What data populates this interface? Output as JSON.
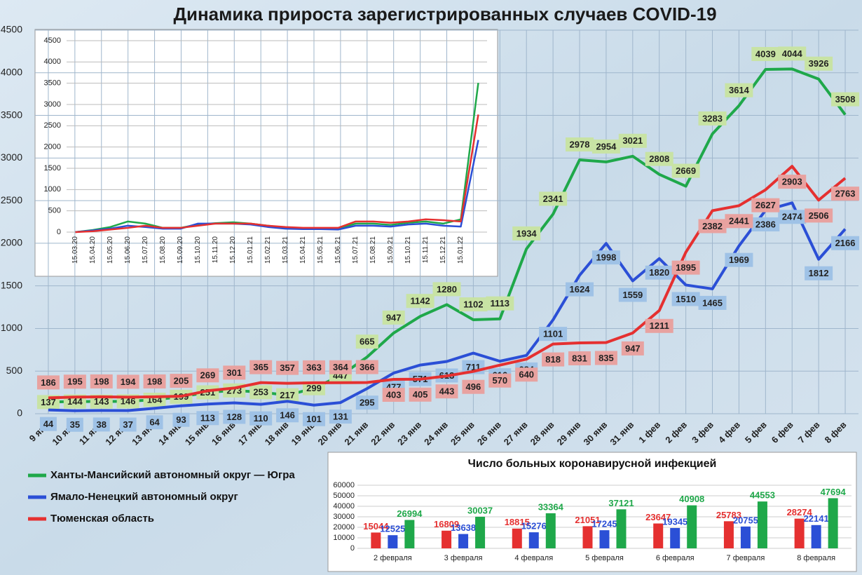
{
  "chart_data": [
    {
      "type": "line",
      "title": "Динамика прироста зарегистрированных случаев COVID-19",
      "categories": [
        "9 янв",
        "10 янв",
        "11 янв",
        "12 янв",
        "13 янв",
        "14 янв",
        "15 янв",
        "16 янв",
        "17 янв",
        "18 янв",
        "19 янв",
        "20 янв",
        "21 янв",
        "22 янв",
        "23 янв",
        "24 янв",
        "25 янв",
        "26 янв",
        "27 янв",
        "28 янв",
        "29 янв",
        "30 янв",
        "31 янв",
        "1 фев",
        "2 фев",
        "3 фев",
        "4 фев",
        "5 фев",
        "6 фев",
        "7 фев",
        "8 фев"
      ],
      "series": [
        {
          "name": "Ханты-Мансийский автономный округ — Югра",
          "color": "#1fa84a",
          "label_color": "#c8e3a4",
          "values": [
            137,
            144,
            143,
            146,
            164,
            199,
            251,
            273,
            253,
            217,
            299,
            447,
            665,
            947,
            1142,
            1280,
            1102,
            1113,
            1934,
            2341,
            2978,
            2954,
            3021,
            2808,
            2669,
            3283,
            3614,
            4039,
            4044,
            3926,
            3508
          ]
        },
        {
          "name": "Ямало-Ненецкий автономный округ",
          "color": "#2b4fd6",
          "label_color": "#9fc2e6",
          "values": [
            44,
            35,
            38,
            37,
            64,
            93,
            113,
            128,
            110,
            146,
            101,
            131,
            295,
            477,
            571,
            613,
            711,
            616,
            684,
            1101,
            1624,
            1998,
            1559,
            1820,
            1510,
            1465,
            1969,
            2386,
            2474,
            1812,
            2166
          ]
        },
        {
          "name": "Тюменская область",
          "color": "#e53030",
          "label_color": "#e8a2a0",
          "values": [
            186,
            195,
            198,
            194,
            198,
            205,
            269,
            301,
            365,
            357,
            363,
            364,
            366,
            403,
            405,
            443,
            496,
            570,
            640,
            818,
            831,
            835,
            947,
            1211,
            1895,
            2382,
            2441,
            2627,
            2903,
            2506,
            2763
          ]
        }
      ],
      "ylim": [
        0,
        4500
      ],
      "yticks": [
        0,
        500,
        1000,
        1500,
        2000,
        2500,
        3000,
        3500,
        4000,
        4500
      ],
      "grid": true,
      "legend": "bottom-left"
    },
    {
      "type": "line",
      "categories": [
        "15.03.20",
        "15.04.20",
        "15.05.20",
        "15.06.20",
        "15.07.20",
        "15.08.20",
        "15.09.20",
        "15.10.20",
        "15.11.20",
        "15.12.20",
        "15.01.21",
        "15.02.21",
        "15.03.21",
        "15.04.21",
        "15.05.21",
        "15.06.21",
        "15.07.21",
        "15.08.21",
        "15.09.21",
        "15.10.21",
        "15.11.21",
        "15.12.21",
        "15.01.22",
        null
      ],
      "series": [
        {
          "color": "#1fa84a",
          "values": [
            0,
            50,
            120,
            250,
            200,
            100,
            100,
            180,
            210,
            230,
            200,
            150,
            100,
            80,
            90,
            80,
            200,
            200,
            170,
            220,
            250,
            200,
            300,
            3508
          ]
        },
        {
          "color": "#2b4fd6",
          "values": [
            0,
            40,
            80,
            150,
            120,
            80,
            80,
            200,
            200,
            200,
            180,
            120,
            80,
            70,
            70,
            60,
            150,
            150,
            130,
            180,
            200,
            150,
            130,
            2166
          ]
        },
        {
          "color": "#e53030",
          "values": [
            0,
            20,
            60,
            100,
            150,
            100,
            100,
            150,
            200,
            200,
            200,
            150,
            120,
            100,
            100,
            100,
            250,
            250,
            220,
            250,
            300,
            280,
            250,
            2763
          ]
        }
      ],
      "ylim": [
        0,
        4500
      ],
      "yticks": [
        0,
        500,
        1000,
        1500,
        2000,
        2500,
        3000,
        3500,
        4000,
        4500
      ],
      "grid": true
    },
    {
      "type": "bar",
      "title": "Число больных  коронавирусной  инфекцией",
      "categories": [
        "2 февраля",
        "3 февраля",
        "4 февраля",
        "5 февраля",
        "6 февраля",
        "7 февраля",
        "8 февраля"
      ],
      "series": [
        {
          "color": "#e53030",
          "values": [
            15044,
            16809,
            18815,
            21051,
            23647,
            25783,
            28274
          ]
        },
        {
          "color": "#2b4fd6",
          "values": [
            12525,
            13638,
            15276,
            17245,
            19345,
            20755,
            22141
          ]
        },
        {
          "color": "#1fa84a",
          "values": [
            26994,
            30037,
            33364,
            37121,
            40908,
            44553,
            47694
          ]
        }
      ],
      "ylim": [
        0,
        60000
      ],
      "yticks": [
        0,
        10000,
        20000,
        30000,
        40000,
        50000,
        60000
      ],
      "grid": true
    }
  ]
}
